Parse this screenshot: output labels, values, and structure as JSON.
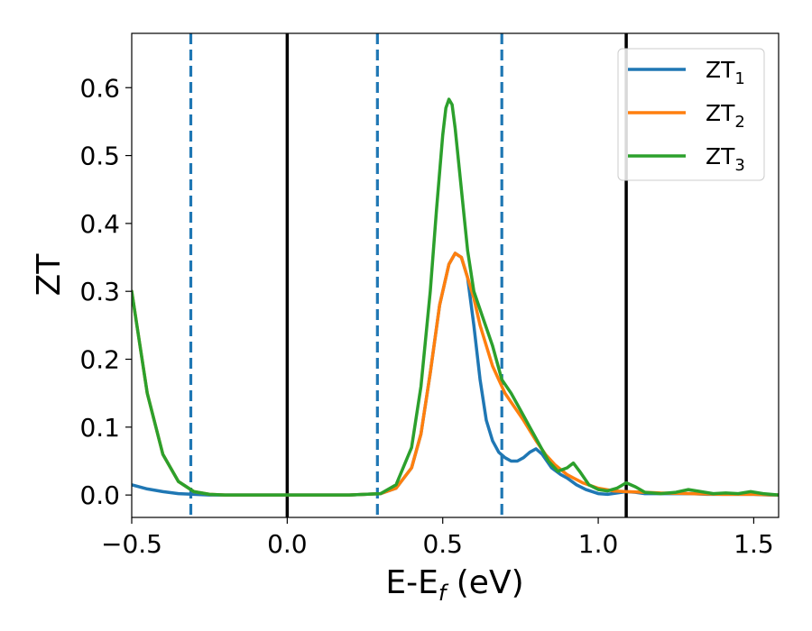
{
  "chart_data": {
    "type": "line",
    "xlabel": {
      "main": "E-E",
      "sub": "f",
      "suffix": " (eV)"
    },
    "ylabel": "ZT",
    "xlim": [
      -0.5,
      1.58
    ],
    "ylim": [
      -0.033,
      0.68
    ],
    "xticks": [
      {
        "value": -0.5,
        "label": "−0.5"
      },
      {
        "value": 0.0,
        "label": "0.0"
      },
      {
        "value": 0.5,
        "label": "0.5"
      },
      {
        "value": 1.0,
        "label": "1.0"
      },
      {
        "value": 1.5,
        "label": "1.5"
      }
    ],
    "yticks": [
      {
        "value": 0.0,
        "label": "0.0"
      },
      {
        "value": 0.1,
        "label": "0.1"
      },
      {
        "value": 0.2,
        "label": "0.2"
      },
      {
        "value": 0.3,
        "label": "0.3"
      },
      {
        "value": 0.4,
        "label": "0.4"
      },
      {
        "value": 0.5,
        "label": "0.5"
      },
      {
        "value": 0.6,
        "label": "0.6"
      }
    ],
    "vlines": [
      {
        "x": -0.31,
        "style": "dashed",
        "color": "#1f77b4"
      },
      {
        "x": 0.0,
        "style": "solid",
        "color": "#000000"
      },
      {
        "x": 0.29,
        "style": "dashed",
        "color": "#1f77b4"
      },
      {
        "x": 0.69,
        "style": "dashed",
        "color": "#1f77b4"
      },
      {
        "x": 1.09,
        "style": "solid",
        "color": "#000000"
      }
    ],
    "legend": {
      "position": "top-right"
    },
    "grid": false,
    "series": [
      {
        "name": {
          "main": "ZT",
          "sub": "1"
        },
        "color": "#1f77b4",
        "x": [
          -0.5,
          -0.45,
          -0.4,
          -0.35,
          -0.3,
          -0.25,
          -0.2,
          0.0,
          0.2,
          0.3,
          0.35,
          0.4,
          0.43,
          0.46,
          0.49,
          0.52,
          0.54,
          0.56,
          0.58,
          0.6,
          0.62,
          0.64,
          0.66,
          0.68,
          0.7,
          0.72,
          0.74,
          0.76,
          0.78,
          0.8,
          0.82,
          0.85,
          0.88,
          0.9,
          0.93,
          0.96,
          1.0,
          1.03,
          1.06,
          1.09,
          1.12,
          1.15,
          1.2,
          1.25,
          1.3,
          1.35,
          1.4,
          1.45,
          1.5,
          1.55,
          1.58
        ],
        "y": [
          0.015,
          0.009,
          0.005,
          0.002,
          0.001,
          0.0,
          0.0,
          0.0,
          0.0,
          0.002,
          0.01,
          0.04,
          0.09,
          0.18,
          0.28,
          0.34,
          0.356,
          0.35,
          0.32,
          0.25,
          0.17,
          0.11,
          0.08,
          0.063,
          0.055,
          0.05,
          0.05,
          0.055,
          0.063,
          0.068,
          0.06,
          0.04,
          0.03,
          0.025,
          0.015,
          0.008,
          0.002,
          0.001,
          0.003,
          0.005,
          0.004,
          0.002,
          0.002,
          0.002,
          0.002,
          0.001,
          0.001,
          0.001,
          0.001,
          0.0,
          0.0
        ]
      },
      {
        "name": {
          "main": "ZT",
          "sub": "2"
        },
        "color": "#ff7f0e",
        "x": [
          -0.5,
          -0.45,
          -0.4,
          -0.35,
          -0.3,
          -0.25,
          -0.2,
          0.0,
          0.2,
          0.3,
          0.35,
          0.4,
          0.43,
          0.46,
          0.49,
          0.52,
          0.54,
          0.56,
          0.58,
          0.6,
          0.62,
          0.64,
          0.66,
          0.68,
          0.7,
          0.73,
          0.76,
          0.8,
          0.83,
          0.86,
          0.9,
          0.95,
          1.0,
          1.05,
          1.09,
          1.15,
          1.2,
          1.3,
          1.4,
          1.5,
          1.58
        ],
        "y": [
          0.3,
          0.15,
          0.06,
          0.02,
          0.005,
          0.001,
          0.0,
          0.0,
          0.0,
          0.002,
          0.01,
          0.04,
          0.09,
          0.18,
          0.28,
          0.34,
          0.356,
          0.35,
          0.32,
          0.29,
          0.25,
          0.22,
          0.19,
          0.17,
          0.15,
          0.13,
          0.11,
          0.08,
          0.06,
          0.045,
          0.03,
          0.018,
          0.01,
          0.006,
          0.005,
          0.004,
          0.003,
          0.002,
          0.001,
          0.001,
          0.0
        ]
      },
      {
        "name": {
          "main": "ZT",
          "sub": "3"
        },
        "color": "#2ca02c",
        "x": [
          -0.5,
          -0.45,
          -0.4,
          -0.35,
          -0.3,
          -0.25,
          -0.2,
          0.0,
          0.2,
          0.3,
          0.35,
          0.4,
          0.43,
          0.46,
          0.48,
          0.5,
          0.51,
          0.52,
          0.53,
          0.54,
          0.56,
          0.58,
          0.6,
          0.63,
          0.66,
          0.69,
          0.72,
          0.75,
          0.78,
          0.81,
          0.84,
          0.87,
          0.9,
          0.92,
          0.94,
          0.97,
          1.0,
          1.03,
          1.06,
          1.09,
          1.12,
          1.15,
          1.2,
          1.25,
          1.29,
          1.33,
          1.37,
          1.41,
          1.45,
          1.49,
          1.53,
          1.58
        ],
        "y": [
          0.3,
          0.15,
          0.06,
          0.02,
          0.005,
          0.001,
          0.0,
          0.0,
          0.0,
          0.002,
          0.015,
          0.07,
          0.16,
          0.3,
          0.42,
          0.53,
          0.57,
          0.583,
          0.575,
          0.54,
          0.45,
          0.36,
          0.3,
          0.26,
          0.22,
          0.17,
          0.15,
          0.125,
          0.1,
          0.075,
          0.05,
          0.035,
          0.04,
          0.047,
          0.035,
          0.015,
          0.008,
          0.006,
          0.01,
          0.018,
          0.012,
          0.004,
          0.002,
          0.004,
          0.008,
          0.005,
          0.002,
          0.003,
          0.002,
          0.005,
          0.002,
          0.0
        ]
      }
    ]
  }
}
